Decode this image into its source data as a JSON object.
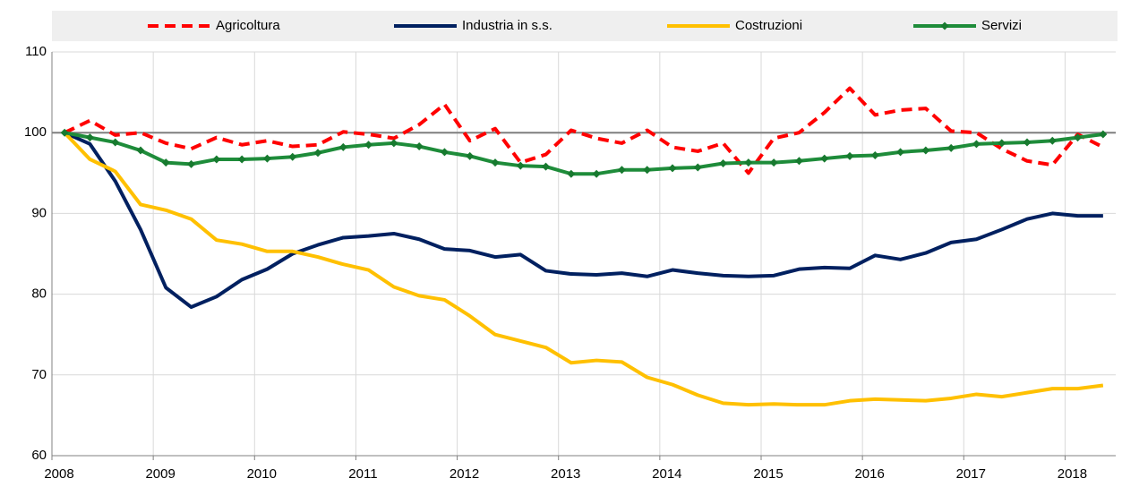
{
  "chart_data": {
    "type": "line",
    "categories": [
      "2008",
      null,
      null,
      null,
      "2009",
      null,
      null,
      null,
      "2010",
      null,
      null,
      null,
      "2011",
      null,
      null,
      null,
      "2012",
      null,
      null,
      null,
      "2013",
      null,
      null,
      null,
      "2014",
      null,
      null,
      null,
      "2015",
      null,
      null,
      null,
      "2016",
      null,
      null,
      null,
      "2017",
      null,
      null,
      null,
      "2018",
      null
    ],
    "series": [
      {
        "name": "Agricoltura",
        "color": "#ff0000",
        "dashed": true,
        "values": [
          100,
          101.5,
          99.7,
          100,
          98.7,
          98,
          99.4,
          98.5,
          99,
          98.3,
          98.5,
          100.1,
          99.8,
          99.3,
          101,
          103.5,
          99,
          100.5,
          96.3,
          97.3,
          100.3,
          99.3,
          98.7,
          100.3,
          98.2,
          97.7,
          98.7,
          95,
          99.3,
          100,
          102.5,
          105.5,
          102.2,
          102.8,
          103,
          100.2,
          100,
          98,
          96.5,
          96,
          99.8,
          98.2
        ]
      },
      {
        "name": "Industria in s.s.",
        "color": "#002060",
        "values": [
          100,
          98.6,
          94,
          88,
          80.8,
          78.4,
          79.7,
          81.8,
          83.1,
          85,
          86.1,
          87,
          87.2,
          87.5,
          86.8,
          85.6,
          85.4,
          84.6,
          84.9,
          82.9,
          82.5,
          82.4,
          82.6,
          82.2,
          83,
          82.6,
          82.3,
          82.2,
          82.3,
          83.1,
          83.3,
          83.2,
          84.8,
          84.3,
          85.1,
          86.4,
          86.8,
          88,
          89.3,
          90,
          89.7,
          89.7
        ]
      },
      {
        "name": "Costruzioni",
        "color": "#ffc000",
        "values": [
          100,
          96.7,
          95.2,
          91.1,
          90.4,
          89.3,
          86.7,
          86.2,
          85.3,
          85.3,
          84.6,
          83.7,
          83,
          80.9,
          79.8,
          79.3,
          77.3,
          75,
          74.2,
          73.4,
          71.5,
          71.8,
          71.6,
          69.7,
          68.8,
          67.5,
          66.5,
          66.3,
          66.4,
          66.3,
          66.3,
          66.8,
          67,
          66.9,
          66.8,
          67.1,
          67.6,
          67.3,
          67.8,
          68.3,
          68.3,
          68.7
        ]
      },
      {
        "name": "Servizi",
        "color": "#1e8c3a",
        "marker": "diamond",
        "values": [
          100,
          99.4,
          98.8,
          97.8,
          96.3,
          96.1,
          96.7,
          96.7,
          96.8,
          97,
          97.5,
          98.2,
          98.5,
          98.7,
          98.3,
          97.6,
          97.1,
          96.3,
          95.9,
          95.8,
          94.9,
          94.9,
          95.4,
          95.4,
          95.6,
          95.7,
          96.2,
          96.3,
          96.3,
          96.5,
          96.8,
          97.1,
          97.2,
          97.6,
          97.8,
          98.1,
          98.6,
          98.7,
          98.8,
          99,
          99.4,
          99.8
        ]
      }
    ],
    "ylim": [
      60,
      110
    ],
    "yticks": [
      60,
      70,
      80,
      90,
      100,
      110
    ],
    "reference_line": 100,
    "grid": true,
    "legend": "top"
  }
}
